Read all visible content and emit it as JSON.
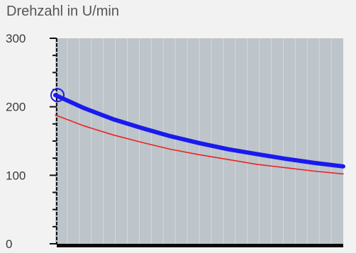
{
  "chart_data": {
    "type": "line",
    "title": "Drehzahl in U/min",
    "xlabel": "",
    "ylabel": "",
    "ylim": [
      0,
      300
    ],
    "y_ticks": [
      0,
      100,
      200,
      300
    ],
    "grid": true,
    "x_gridlines": 24,
    "plot_background": "#bdc4ca",
    "series": [
      {
        "color": "#1a1aee",
        "style": "thick",
        "x": [
          0,
          0.1,
          0.2,
          0.3,
          0.4,
          0.5,
          0.6,
          0.7,
          0.8,
          0.9,
          1.0
        ],
        "values": [
          217,
          198,
          182,
          169,
          157,
          147,
          138,
          131,
          124,
          118,
          113
        ]
      },
      {
        "color": "#ee2222",
        "style": "thin",
        "x": [
          0,
          0.1,
          0.2,
          0.3,
          0.4,
          0.5,
          0.6,
          0.7,
          0.8,
          0.9,
          1.0
        ],
        "values": [
          188,
          172,
          159,
          148,
          138,
          130,
          123,
          116,
          111,
          106,
          102
        ]
      }
    ],
    "marker": {
      "series_index": 0,
      "x": 0,
      "y": 217,
      "color": "#1a1aee"
    }
  }
}
